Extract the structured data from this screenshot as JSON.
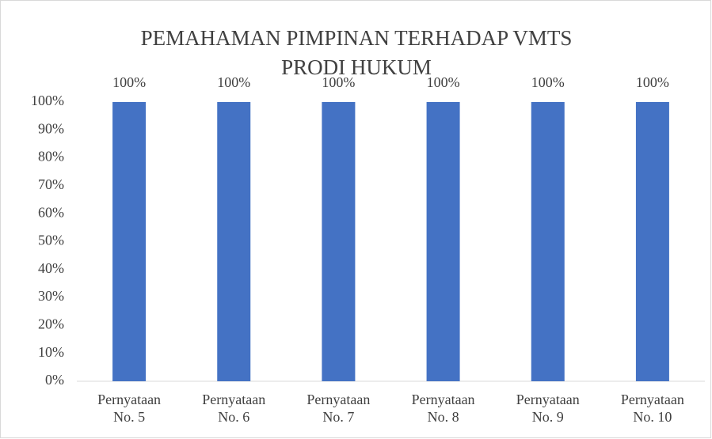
{
  "chart_data": {
    "type": "bar",
    "title": "PEMAHAMAN PIMPINAN TERHADAP VMTS PRODI HUKUM",
    "categories": [
      "Pernyataan No. 5",
      "Pernyataan No. 6",
      "Pernyataan No. 7",
      "Pernyataan No. 8",
      "Pernyataan No. 9",
      "Pernyataan No. 10"
    ],
    "values": [
      100,
      100,
      100,
      100,
      100,
      100
    ],
    "value_labels": [
      "100%",
      "100%",
      "100%",
      "100%",
      "100%",
      "100%"
    ],
    "color": "#4472c4",
    "ylim": [
      0,
      100
    ],
    "yticks": [
      {
        "value": 0,
        "label": "0%"
      },
      {
        "value": 10,
        "label": "10%"
      },
      {
        "value": 20,
        "label": "20%"
      },
      {
        "value": 30,
        "label": "30%"
      },
      {
        "value": 40,
        "label": "40%"
      },
      {
        "value": 50,
        "label": "50%"
      },
      {
        "value": 60,
        "label": "60%"
      },
      {
        "value": 70,
        "label": "70%"
      },
      {
        "value": 80,
        "label": "80%"
      },
      {
        "value": 90,
        "label": "90%"
      },
      {
        "value": 100,
        "label": "100%"
      }
    ],
    "grid": false
  }
}
